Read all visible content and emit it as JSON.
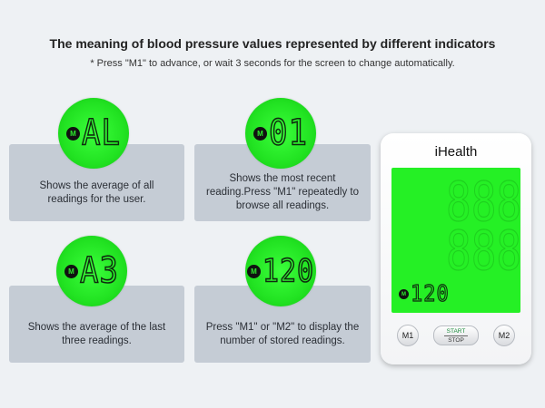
{
  "header": {
    "title": "The meaning of blood pressure values represented by different indicators",
    "subtitle": "* Press \"M1\" to advance, or wait 3 seconds for the screen to change automatically."
  },
  "cards": [
    {
      "display": "AL",
      "m_label": "M",
      "text": "Shows the average of all readings for the user."
    },
    {
      "display": "01",
      "m_label": "M",
      "text": "Shows the most recent reading.Press \"M1\" repeatedly to browse all readings."
    },
    {
      "display": "A3",
      "m_label": "M",
      "text": "Shows the average of the last three readings."
    },
    {
      "display": "120",
      "m_label": "M",
      "text": "Press \"M1\" or \"M2\" to display the number of stored readings."
    }
  ],
  "device": {
    "brand": "iHealth",
    "screen_value": "120",
    "screen_m_label": "M",
    "buttons": {
      "m1": "M1",
      "start": "START",
      "stop": "STOP",
      "m2": "M2"
    }
  },
  "colors": {
    "lcd_green": "#25f025",
    "card_bg": "#c5ccd5",
    "page_bg": "#eef1f4"
  }
}
